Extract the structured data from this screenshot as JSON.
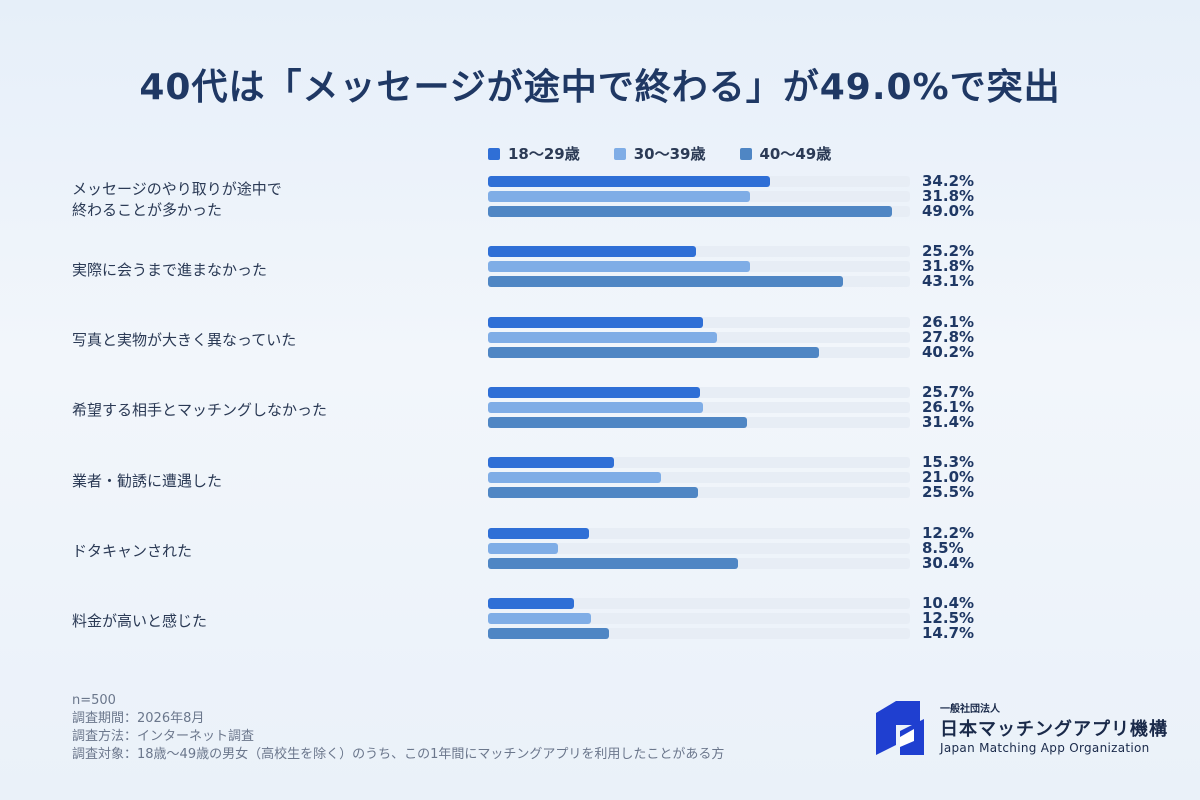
{
  "title": "40代は「メッセージが途中で終わる」が49.0%で突出",
  "colors": {
    "series_18_29": "#2f6fd6",
    "series_30_39": "#7fade6",
    "series_40_49": "#4f86c4",
    "track": "#e7edf5",
    "logo": "#1f3fd0"
  },
  "chart_data": {
    "type": "bar",
    "orientation": "horizontal",
    "title": "40代は「メッセージが途中で終わる」が49.0%で突出",
    "legend_position": "top",
    "xlim": [
      0,
      50
    ],
    "categories": [
      "メッセージのやり取りが途中で\n終わることが多かった",
      "実際に会うまで進まなかった",
      "写真と実物が大きく異なっていた",
      "希望する相手とマッチングしなかった",
      "業者・勧誘に遭遇した",
      "ドタキャンされた",
      "料金が高いと感じた"
    ],
    "series": [
      {
        "name": "18〜29歳",
        "values": [
          34.2,
          25.2,
          26.1,
          25.7,
          15.3,
          12.2,
          10.4
        ],
        "labels": [
          "34.2%",
          "25.2%",
          "26.1%",
          "25.7%",
          "15.3%",
          "12.2%",
          "10.4%"
        ]
      },
      {
        "name": "30〜39歳",
        "values": [
          31.8,
          31.8,
          27.8,
          26.1,
          21.0,
          8.5,
          12.5
        ],
        "labels": [
          "31.8%",
          "31.8%",
          "27.8%",
          "26.1%",
          "21.0%",
          "8.5%",
          "12.5%"
        ]
      },
      {
        "name": "40〜49歳",
        "values": [
          49.0,
          43.1,
          40.2,
          31.4,
          25.5,
          30.4,
          14.7
        ],
        "labels": [
          "49.0%",
          "43.1%",
          "40.2%",
          "31.4%",
          "25.5%",
          "30.4%",
          "14.7%"
        ]
      }
    ]
  },
  "footnotes": [
    "n=500",
    "調査期間：2026年8月",
    "調査方法：インターネット調査",
    "調査対象：18歳〜49歳の男女（高校生を除く）のうち、この1年間にマッチングアプリを利用したことがある方"
  ],
  "organization": {
    "small": "一般社団法人",
    "name": "日本マッチングアプリ機構",
    "english": "Japan Matching App Organization",
    "logo_icon": "org-logo-icon"
  }
}
